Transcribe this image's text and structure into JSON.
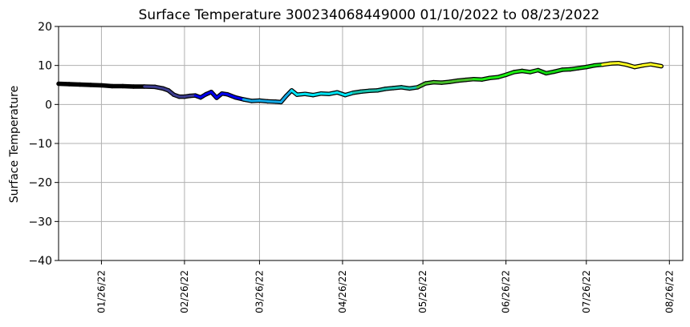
{
  "chart_data": {
    "type": "line",
    "title": "Surface Temperature 300234068449000  01/10/2022 to 08/23/2022",
    "ylabel": "Surface Temperature",
    "xlabel": "",
    "ylim": [
      -40,
      20
    ],
    "yticks": [
      20,
      10,
      0,
      -10,
      -20,
      -30,
      -40
    ],
    "yticklabels": [
      "20",
      "10",
      "0",
      "−10",
      "−20",
      "−30",
      "−40"
    ],
    "xlim": [
      "2022-01-10",
      "2022-08-31"
    ],
    "xticks": [
      "2022-01-26",
      "2022-02-26",
      "2022-03-26",
      "2022-04-26",
      "2022-05-26",
      "2022-06-26",
      "2022-07-26",
      "2022-08-26"
    ],
    "xticklabels": [
      "01/26/22",
      "02/26/22",
      "03/26/22",
      "04/26/22",
      "05/26/22",
      "06/26/22",
      "07/26/22",
      "08/26/22"
    ],
    "grid": true,
    "colormap_note_colors": [
      "#000000",
      "#3d3d8f",
      "#0000ee",
      "#12a9e6",
      "#00e5f5",
      "#16c0ad",
      "#47bf2a",
      "#1dee12",
      "#12d812",
      "#ffff22"
    ],
    "series": [
      {
        "x": [
          "2022-01-10",
          "2022-01-14",
          "2022-01-18",
          "2022-01-22",
          "2022-01-26",
          "2022-01-30",
          "2022-02-03",
          "2022-02-07",
          "2022-02-11",
          "2022-02-15",
          "2022-02-18",
          "2022-02-20",
          "2022-02-22",
          "2022-02-24",
          "2022-02-26",
          "2022-02-28",
          "2022-03-02",
          "2022-03-04",
          "2022-03-06",
          "2022-03-08",
          "2022-03-10",
          "2022-03-12",
          "2022-03-14",
          "2022-03-17",
          "2022-03-20",
          "2022-03-23",
          "2022-03-26",
          "2022-03-29",
          "2022-04-01",
          "2022-04-03",
          "2022-04-05",
          "2022-04-07",
          "2022-04-09",
          "2022-04-12",
          "2022-04-15",
          "2022-04-18",
          "2022-04-21",
          "2022-04-24",
          "2022-04-27",
          "2022-04-30",
          "2022-05-03",
          "2022-05-06",
          "2022-05-09",
          "2022-05-12",
          "2022-05-15",
          "2022-05-18",
          "2022-05-21",
          "2022-05-24",
          "2022-05-27",
          "2022-05-30",
          "2022-06-02",
          "2022-06-05",
          "2022-06-08",
          "2022-06-11",
          "2022-06-14",
          "2022-06-17",
          "2022-06-20",
          "2022-06-23",
          "2022-06-26",
          "2022-06-29",
          "2022-07-02",
          "2022-07-05",
          "2022-07-08",
          "2022-07-11",
          "2022-07-14",
          "2022-07-17",
          "2022-07-20",
          "2022-07-23",
          "2022-07-26",
          "2022-07-29",
          "2022-08-01",
          "2022-08-04",
          "2022-08-07",
          "2022-08-10",
          "2022-08-13",
          "2022-08-16",
          "2022-08-19",
          "2022-08-23"
        ],
        "y": [
          5.3,
          5.2,
          5.1,
          5.0,
          4.9,
          4.7,
          4.7,
          4.6,
          4.6,
          4.5,
          4.1,
          3.6,
          2.5,
          2.0,
          2.0,
          2.2,
          2.3,
          1.8,
          2.6,
          3.2,
          1.7,
          2.8,
          2.6,
          1.8,
          1.3,
          0.9,
          1.0,
          0.8,
          0.7,
          0.6,
          2.2,
          3.6,
          2.5,
          2.7,
          2.4,
          2.8,
          2.7,
          3.1,
          2.4,
          3.0,
          3.3,
          3.5,
          3.6,
          4.0,
          4.2,
          4.4,
          4.1,
          4.4,
          5.4,
          5.7,
          5.6,
          5.8,
          6.1,
          6.3,
          6.5,
          6.4,
          6.8,
          7.0,
          7.6,
          8.3,
          8.6,
          8.3,
          8.8,
          8.0,
          8.4,
          8.9,
          9.0,
          9.3,
          9.6,
          10.0,
          10.2,
          10.5,
          10.6,
          10.2,
          9.6,
          10.0,
          10.3,
          9.8
        ]
      }
    ]
  }
}
